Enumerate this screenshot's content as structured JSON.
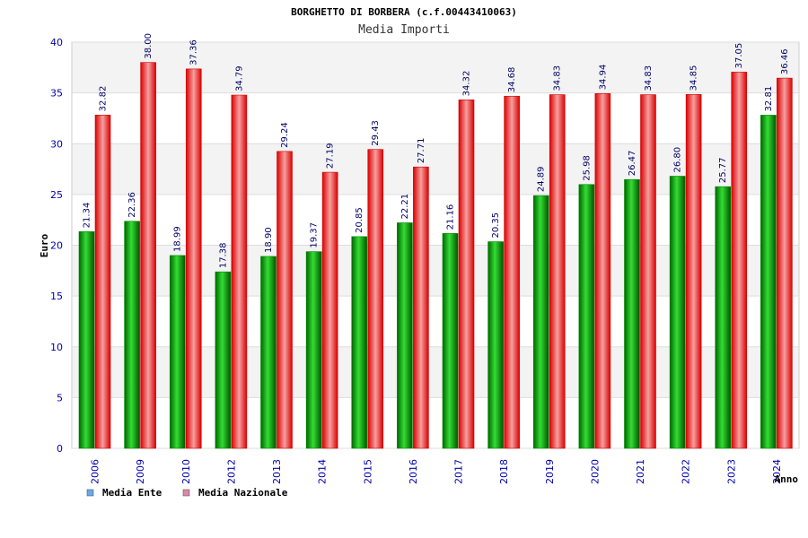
{
  "chart_data": {
    "type": "bar",
    "title": "BORGHETTO DI BORBERA (c.f.00443410063)",
    "subtitle": "Media Importi",
    "ylabel": "Euro",
    "xlabel": "Anno",
    "ylim": [
      0,
      40
    ],
    "yticks": [
      0,
      5,
      10,
      15,
      20,
      25,
      30,
      35,
      40
    ],
    "grid": true,
    "legend_position": "bottom-left",
    "categories": [
      "2006",
      "2009",
      "2010",
      "2012",
      "2013",
      "2014",
      "2015",
      "2016",
      "2017",
      "2018",
      "2019",
      "2020",
      "2021",
      "2022",
      "2023",
      "2024"
    ],
    "series": [
      {
        "name": "Media Ente",
        "color": "#00aa00",
        "legend_color": "#66aaee",
        "values": [
          21.34,
          22.36,
          18.99,
          17.38,
          18.9,
          19.37,
          20.85,
          22.21,
          21.16,
          20.35,
          24.89,
          25.98,
          26.47,
          26.8,
          25.77,
          32.81
        ]
      },
      {
        "name": "Media Nazionale",
        "color": "#ee0000",
        "legend_color": "#dd88aa",
        "values": [
          32.82,
          38.0,
          37.36,
          34.79,
          29.24,
          27.19,
          29.43,
          27.71,
          34.32,
          34.68,
          34.83,
          34.94,
          34.83,
          34.85,
          37.05,
          36.46
        ]
      }
    ],
    "value_labels": [
      [
        "21.34",
        "22.36",
        "18.99",
        "17.38",
        "18.90",
        "19.37",
        "20.85",
        "22.21",
        "21.16",
        "20.35",
        "24.89",
        "25.98",
        "26.47",
        "26.80",
        "25.77",
        "32.81"
      ],
      [
        "32.82",
        "38.00",
        "37.36",
        "34.79",
        "29.24",
        "27.19",
        "29.43",
        "27.71",
        "34.32",
        "34.68",
        "34.83",
        "34.94",
        "34.83",
        "34.85",
        "37.05",
        "36.46"
      ]
    ]
  }
}
